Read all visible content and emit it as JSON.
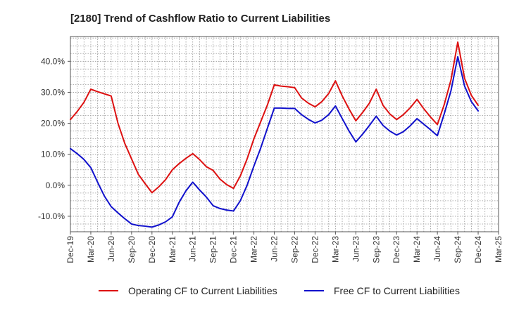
{
  "chart_data": {
    "type": "line",
    "title": "[2180]  Trend of Cashflow Ratio to Current Liabilities",
    "xlabel": "",
    "ylabel": "",
    "ylim": [
      -15,
      48
    ],
    "y_ticks": [
      -10,
      0,
      10,
      20,
      30,
      40
    ],
    "y_tick_format": "{v}.0%",
    "x_tick_labels": [
      "Dec-19",
      "Mar-20",
      "Jun-20",
      "Sep-20",
      "Dec-20",
      "Mar-21",
      "Jun-21",
      "Sep-21",
      "Dec-21",
      "Mar-22",
      "Jun-22",
      "Sep-22",
      "Dec-22",
      "Mar-23",
      "Jun-23",
      "Sep-23",
      "Dec-23",
      "Mar-24",
      "Jun-24",
      "Sep-24",
      "Dec-24",
      "Mar-25"
    ],
    "grid": true,
    "legend_position": "bottom",
    "x": [
      "Dec-19",
      "Jan-20",
      "Feb-20",
      "Mar-20",
      "Apr-20",
      "May-20",
      "Jun-20",
      "Jul-20",
      "Aug-20",
      "Sep-20",
      "Oct-20",
      "Nov-20",
      "Dec-20",
      "Jan-21",
      "Feb-21",
      "Mar-21",
      "Apr-21",
      "May-21",
      "Jun-21",
      "Jul-21",
      "Aug-21",
      "Sep-21",
      "Oct-21",
      "Nov-21",
      "Dec-21",
      "Jan-22",
      "Feb-22",
      "Mar-22",
      "Apr-22",
      "May-22",
      "Jun-22",
      "Jul-22",
      "Aug-22",
      "Sep-22",
      "Oct-22",
      "Nov-22",
      "Dec-22",
      "Jan-23",
      "Feb-23",
      "Mar-23",
      "Apr-23",
      "May-23",
      "Jun-23",
      "Jul-23",
      "Aug-23",
      "Sep-23",
      "Oct-23",
      "Nov-23",
      "Dec-23",
      "Jan-24",
      "Feb-24",
      "Mar-24",
      "Apr-24",
      "May-24",
      "Jun-24",
      "Jul-24",
      "Aug-24",
      "Sep-24",
      "Oct-24",
      "Nov-24",
      "Dec-24"
    ],
    "series": [
      {
        "name": "Operating CF to Current Liabilities",
        "color": "#dd1111",
        "values": [
          21.2,
          23.8,
          26.8,
          31.0,
          30.2,
          29.5,
          28.8,
          20.0,
          13.5,
          8.5,
          3.5,
          0.5,
          -2.4,
          -0.5,
          1.8,
          5.0,
          7.0,
          8.7,
          10.2,
          8.3,
          6.0,
          4.8,
          2.0,
          0.2,
          -1.0,
          3.0,
          8.5,
          15.0,
          20.5,
          26.0,
          32.4,
          32.0,
          31.8,
          31.5,
          28.2,
          26.5,
          25.3,
          27.0,
          29.6,
          33.7,
          28.8,
          24.6,
          20.8,
          23.5,
          26.5,
          31.0,
          25.8,
          23.0,
          21.2,
          22.8,
          25.0,
          27.7,
          24.7,
          22.0,
          19.6,
          26.0,
          34.0,
          46.2,
          34.5,
          29.0,
          25.8
        ]
      },
      {
        "name": "Free CF to Current Liabilities",
        "color": "#1111cc",
        "values": [
          11.8,
          10.2,
          8.3,
          5.7,
          1.0,
          -3.5,
          -6.9,
          -8.9,
          -10.8,
          -12.5,
          -13.0,
          -13.2,
          -13.5,
          -12.8,
          -11.8,
          -10.2,
          -5.5,
          -1.8,
          1.0,
          -1.5,
          -3.8,
          -6.6,
          -7.5,
          -8.0,
          -8.3,
          -5.0,
          0.0,
          6.2,
          12.0,
          18.5,
          24.9,
          24.9,
          24.8,
          24.8,
          22.8,
          21.3,
          20.1,
          21.0,
          22.8,
          25.6,
          21.5,
          17.5,
          14.0,
          16.5,
          19.3,
          22.3,
          19.3,
          17.5,
          16.2,
          17.3,
          19.2,
          21.5,
          19.7,
          17.9,
          16.0,
          23.0,
          30.5,
          41.5,
          32.0,
          27.0,
          24.0
        ]
      }
    ]
  }
}
